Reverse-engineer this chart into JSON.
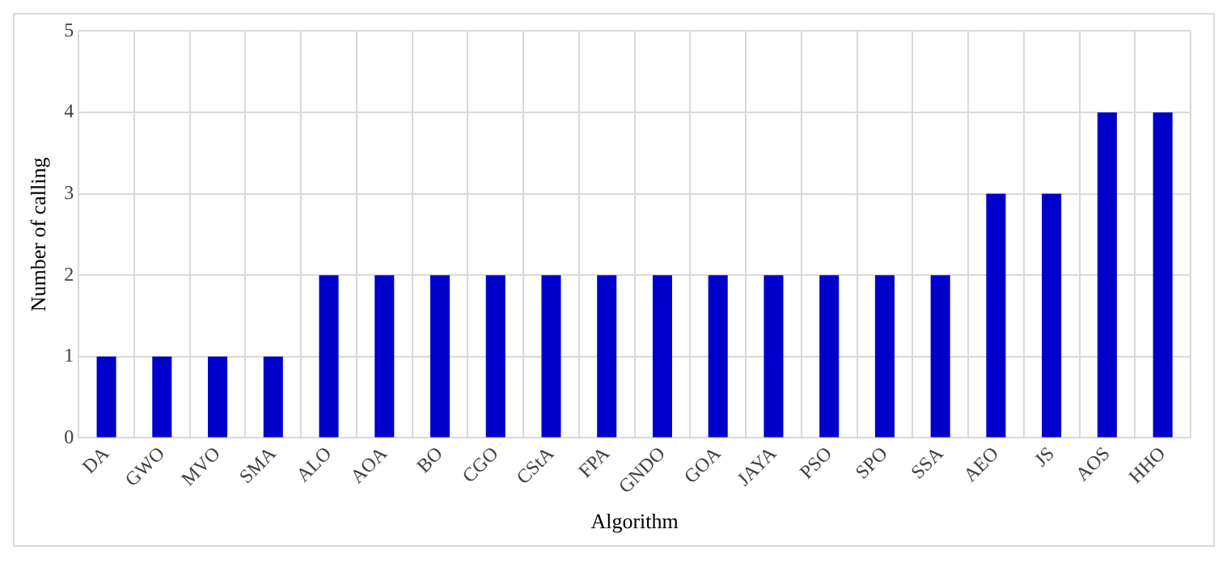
{
  "chart_data": {
    "type": "bar",
    "xlabel": "Algorithm",
    "ylabel": "Number of calling",
    "categories": [
      "DA",
      "GWO",
      "MVO",
      "SMA",
      "ALO",
      "AOA",
      "BO",
      "CGO",
      "CStA",
      "FPA",
      "GNDO",
      "GOA",
      "JAYA",
      "PSO",
      "SPO",
      "SSA",
      "AEO",
      "JS",
      "AOS",
      "HHO"
    ],
    "values": [
      1,
      1,
      1,
      1,
      2,
      2,
      2,
      2,
      2,
      2,
      2,
      2,
      2,
      2,
      2,
      2,
      3,
      3,
      4,
      4
    ],
    "color": "#0000cc",
    "ylim": [
      0,
      5
    ],
    "yticks": [
      0,
      1,
      2,
      3,
      4,
      5
    ],
    "grid": true
  }
}
